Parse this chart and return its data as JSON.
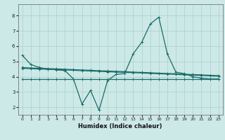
{
  "xlabel": "Humidex (Indice chaleur)",
  "xlim": [
    -0.5,
    23.5
  ],
  "ylim": [
    1.5,
    8.75
  ],
  "yticks": [
    2,
    3,
    4,
    5,
    6,
    7,
    8
  ],
  "xticks": [
    0,
    1,
    2,
    3,
    4,
    5,
    6,
    7,
    8,
    9,
    10,
    11,
    12,
    13,
    14,
    15,
    16,
    17,
    18,
    19,
    20,
    21,
    22,
    23
  ],
  "bg_color": "#cce9e7",
  "grid_color": "#aacfcd",
  "line_color": "#1a6b68",
  "lines": [
    {
      "x": [
        0,
        1,
        2,
        3,
        4,
        5,
        6,
        7,
        8,
        9,
        10,
        11,
        12,
        13,
        14,
        15,
        16,
        17,
        18,
        19,
        20,
        21,
        22,
        23
      ],
      "y": [
        5.4,
        4.8,
        4.6,
        4.5,
        4.45,
        4.4,
        3.85,
        2.2,
        3.1,
        1.8,
        3.75,
        4.15,
        4.2,
        5.5,
        6.25,
        7.45,
        7.9,
        5.5,
        4.3,
        4.2,
        4.0,
        3.9,
        3.85,
        3.85
      ]
    },
    {
      "x": [
        0,
        1,
        2,
        3,
        4,
        5,
        6,
        7,
        8,
        9,
        10,
        11,
        12,
        13,
        14,
        15,
        16,
        17,
        18,
        19,
        20,
        21,
        22,
        23
      ],
      "y": [
        4.55,
        4.52,
        4.5,
        4.48,
        4.46,
        4.44,
        4.42,
        4.39,
        4.37,
        4.35,
        4.32,
        4.3,
        4.28,
        4.26,
        4.24,
        4.21,
        4.19,
        4.17,
        4.15,
        4.12,
        4.1,
        4.08,
        4.05,
        4.03
      ]
    },
    {
      "x": [
        0,
        1,
        2,
        3,
        4,
        5,
        6,
        7,
        8,
        9,
        10,
        11,
        12,
        13,
        14,
        15,
        16,
        17,
        18,
        19,
        20,
        21,
        22,
        23
      ],
      "y": [
        4.6,
        4.57,
        4.55,
        4.53,
        4.51,
        4.49,
        4.46,
        4.44,
        4.42,
        4.39,
        4.37,
        4.35,
        4.33,
        4.3,
        4.28,
        4.26,
        4.23,
        4.21,
        4.19,
        4.16,
        4.14,
        4.12,
        4.09,
        4.07
      ]
    },
    {
      "x": [
        0,
        1,
        2,
        3,
        4,
        5,
        6,
        7,
        8,
        9,
        10,
        11,
        12,
        13,
        14,
        15,
        16,
        17,
        18,
        19,
        20,
        21,
        22,
        23
      ],
      "y": [
        3.85,
        3.85,
        3.85,
        3.85,
        3.85,
        3.85,
        3.85,
        3.85,
        3.85,
        3.85,
        3.85,
        3.85,
        3.85,
        3.85,
        3.85,
        3.85,
        3.85,
        3.85,
        3.85,
        3.85,
        3.85,
        3.85,
        3.85,
        3.85
      ]
    }
  ]
}
